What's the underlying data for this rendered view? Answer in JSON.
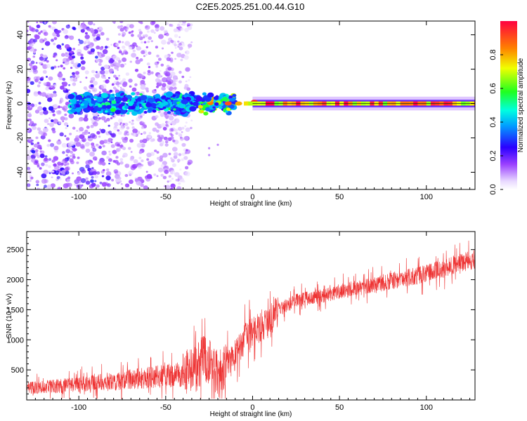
{
  "title": "C2E5.2025.251.00.44.G10",
  "chart_data": [
    {
      "type": "heatmap",
      "xlabel": "Height of straight line (km)",
      "ylabel": "Frequency (Hz)",
      "xlim": [
        -130,
        128
      ],
      "ylim": [
        -50,
        48
      ],
      "xticks": [
        -100,
        -50,
        0,
        50,
        100
      ],
      "yticks": [
        -40,
        -20,
        0,
        20,
        40
      ],
      "colorbar": {
        "label": "Normalized spectral amplitude",
        "range": [
          0,
          1
        ],
        "ticks": [
          "0.0",
          "0.2",
          "0.4",
          "0.6",
          "0.8"
        ]
      },
      "features": [
        {
          "x_range": [
            -130,
            -35
          ],
          "y_range": [
            -50,
            48
          ],
          "description_value": "scattered low amplitude 0.1-0.3"
        },
        {
          "x_range": [
            -105,
            -10
          ],
          "y_range": [
            -5,
            5
          ],
          "amplitude_range": [
            0.2,
            0.6
          ]
        },
        {
          "x_range": [
            0,
            128
          ],
          "y_range": [
            -2,
            2
          ],
          "amplitude_range": [
            0.6,
            1.0
          ]
        }
      ]
    },
    {
      "type": "line",
      "xlabel": "Height of straight line (km)",
      "ylabel": "SNR (10 * v/v)",
      "xlim": [
        -130,
        128
      ],
      "ylim": [
        0,
        2800
      ],
      "xticks": [
        -100,
        -50,
        0,
        50,
        100
      ],
      "yticks": [
        500,
        1000,
        1500,
        2000,
        2500
      ],
      "color": "#ee3333",
      "trend": [
        {
          "x": -130,
          "y": 200
        },
        {
          "x": -100,
          "y": 250
        },
        {
          "x": -75,
          "y": 330
        },
        {
          "x": -50,
          "y": 400
        },
        {
          "x": -35,
          "y": 450
        },
        {
          "x": -28,
          "y": 700
        },
        {
          "x": -20,
          "y": 450
        },
        {
          "x": -12,
          "y": 650
        },
        {
          "x": -5,
          "y": 1000
        },
        {
          "x": 0,
          "y": 1150
        },
        {
          "x": 8,
          "y": 1250
        },
        {
          "x": 15,
          "y": 1500
        },
        {
          "x": 25,
          "y": 1650
        },
        {
          "x": 50,
          "y": 1800
        },
        {
          "x": 75,
          "y": 1950
        },
        {
          "x": 100,
          "y": 2100
        },
        {
          "x": 128,
          "y": 2350
        }
      ]
    }
  ]
}
